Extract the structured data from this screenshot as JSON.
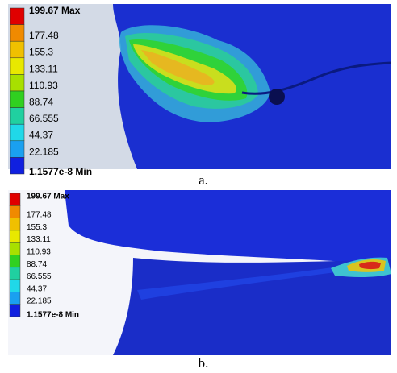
{
  "panels": [
    {
      "legend": [
        "199.67 Max",
        "177.48",
        "155.3",
        "133.11",
        "110.93",
        "88.74",
        "66.555",
        "44.37",
        "22.185",
        "1.1577e-8 Min"
      ],
      "caption": "a."
    },
    {
      "legend": [
        "199.67 Max",
        "177.48",
        "155.3",
        "133.11",
        "110.93",
        "88.74",
        "66.555",
        "44.37",
        "22.185",
        "1.1577e-8 Min"
      ],
      "caption": "b."
    }
  ]
}
